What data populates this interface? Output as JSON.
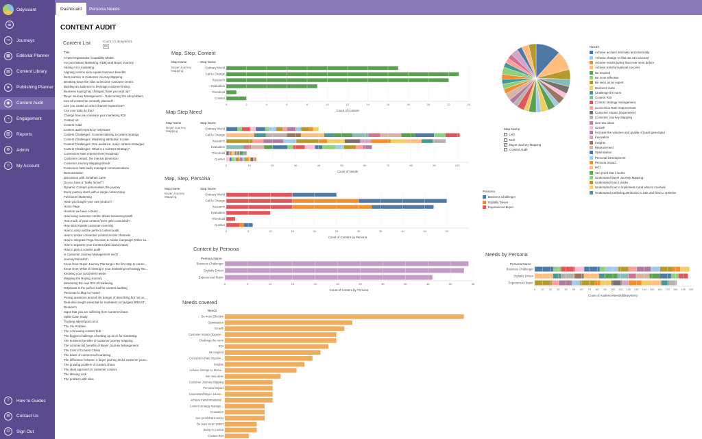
{
  "app": {
    "name": "Odyssiant"
  },
  "sidebar": {
    "items": [
      {
        "label": "Journeys",
        "icon": "route-icon",
        "glyph": "↝"
      },
      {
        "label": "Editorial Planner",
        "icon": "calendar-icon",
        "glyph": "▦"
      },
      {
        "label": "Content Library",
        "icon": "book-icon",
        "glyph": "▤"
      },
      {
        "label": "Publishing Planner",
        "icon": "send-icon",
        "glyph": "➤"
      },
      {
        "label": "Content Audit",
        "icon": "audit-icon",
        "glyph": "◉",
        "active": true
      },
      {
        "label": "Engagement",
        "icon": "engagement-icon",
        "glyph": "◔"
      },
      {
        "label": "Reports",
        "icon": "chart-icon",
        "glyph": "▥"
      },
      {
        "label": "Admin",
        "icon": "gear-icon",
        "glyph": "⚙"
      },
      {
        "label": "My Account",
        "icon": "user-icon",
        "glyph": "☺"
      }
    ],
    "footer": [
      {
        "label": "How to Guides",
        "icon": "help-icon",
        "glyph": "?"
      },
      {
        "label": "Contact Us",
        "icon": "mail-icon",
        "glyph": "✉"
      },
      {
        "label": "Sign Out",
        "icon": "signout-icon",
        "glyph": "⏻"
      }
    ]
  },
  "tabs": [
    "Dashboard",
    "Persona Needs"
  ],
  "page": {
    "title": "CONTENT AUDIT"
  },
  "content_list": {
    "title": "Content List",
    "filter_label": "Count of Libraryitem1",
    "filter_value": "89",
    "column": "Title",
    "items": [
      "A New Organisation Capability Model",
      "Account Based Marketing (ABM) and Buyer Journey",
      "Adding AI to marketing",
      "Aligning comms silos equals business benefits",
      "Best practice in Customer Journey Mapping",
      "Breaking down the silos to become customer-centric",
      "Building an audience to leverage customer timing",
      "Business buying has changed, have you kept up?",
      "Buyer Journey Management – Overcoming the silo problem",
      "Can all content be centrally planned?",
      "Can you create an omni-channel experience?",
      "Can your data do this?",
      "Change how you measure your marketing ROI",
      "Contact Us",
      "Content Audit",
      "Content audit reports by Odyssiant",
      "Content Challenges: Commercialising a content strategy",
      "Content Challenges: Marketing attribution to sale",
      "Content Challenges: One audience, many content strategies",
      "Content Challenges: What is a Content Strategy?",
      "Conversion Rate Improvement Roadmap",
      "Customer contact, the internal dimension",
      "Customer Journey Mapping Ebook",
      "Customers hate badly managed communications",
      "Demonstration",
      "Discussion with Jonathan Cann",
      "Do you have a \"leaky funnel\"?",
      "Dynamic Content personalises the journey",
      "Every journey starts with a single content step",
      "Full funnel Marketing",
      "Have you bought your own product?",
      "Home Page",
      "Houston we have contact...",
      "How being customer-centric drives business growth",
      "How much of your content never gets consumed?",
      "How silos impede customer-centricity",
      "How to carry out the perfect content audit",
      "How to create connected content across channels",
      "How to integrate Pega Decision & Adobe Campaign (Other su...",
      "How to organise your Content (and avoid chaos)",
      "How to plan a content audit",
      "Is Customer Journey Management next?",
      "Journey Research",
      "Know How: Buyer Journey Planning is the first step to conne...",
      "Know How: What is missing in your marketing technology sta...",
      "Knowing your customers needs",
      "Mapping the Buying Journey",
      "Measuring the new ROI of marketing",
      "Odyssiant is the perfect tool for content auditing",
      "Personas to Map to Funnel",
      "Posing questions around the danger of describing but not un...",
      "Real-time insight essential for marketers to navigate BREXIT...",
      "Research",
      "Signs that you are suffering from Content Chaos",
      "Splitit Case Study",
      "Trudeep advert/post on LI",
      "The 3% Problem",
      "The AI knowing content hub",
      "The biggest challenge of setting up an AI for marketing",
      "The business benefits of customer journey mapping",
      "The commercial benefits of Buyer Journey Management",
      "The Cost of Content Chaos",
      "The dawn of commercial marketing",
      "The difference between a buyer journey and a customer journ...",
      "The growing problem of content chaos",
      "The ideal approach to customer contact",
      "The Missing Link",
      "The problem with silos"
    ]
  },
  "map_step_content": {
    "title": "Map, Step, Content",
    "col_map": "Map Name",
    "col_step": "Step Name",
    "map_value": "Buyer Journey Mapping",
    "xlabel": "Count of Content"
  },
  "map_step_need": {
    "title": "Map Step Need",
    "col_map": "Map Name",
    "col_step": "Step Name",
    "map_value": "Buyer Journey Mapping",
    "xlabel": "Count of Needs"
  },
  "map_step_persona": {
    "title": "Map, Step, Persona",
    "col_map": "Map Name",
    "col_step": "Step Name",
    "map_value": "Buyer Journey Mapping",
    "xlabel": "Count of Content by Persona"
  },
  "content_by_persona": {
    "title": "Content by Persona",
    "col": "Persona Name",
    "xlabel": "Count of Content by Persona"
  },
  "needs_by_persona": {
    "title": "Needs by Persona",
    "col": "Persona Name",
    "xlabel": "Count of AudienceNeeds(libraryItem)"
  },
  "needs_covered": {
    "title": "Needs covered",
    "col": "Needs"
  },
  "map_filter": {
    "title": "Map Name",
    "options": [
      {
        "label": "(All)",
        "checked": false
      },
      {
        "label": "Null",
        "checked": false
      },
      {
        "label": "Buyer Journey Mapping",
        "checked": true
      },
      {
        "label": "Content Audit",
        "checked": false
      }
    ]
  },
  "persona_legend": {
    "title": "Persona",
    "items": [
      {
        "label": "Business Challenger",
        "color": "#4e79a7"
      },
      {
        "label": "Digitally Driven",
        "color": "#f28e2b"
      },
      {
        "label": "Experienced Buyer",
        "color": "#e15759"
      }
    ]
  },
  "needs_legend": {
    "title": "Needs",
    "items": [
      {
        "label": "Achieve acclaim internally and externally",
        "color": "#4e79a7"
      },
      {
        "label": "Achieve change so that we can succeed",
        "color": "#a0cbe8"
      },
      {
        "label": "Achieve results better than ever seen before",
        "color": "#f28e2b"
      },
      {
        "label": "Achieve transformational success",
        "color": "#ffbe7d"
      },
      {
        "label": "Be Inspired",
        "color": "#59a14f"
      },
      {
        "label": "Be more Effective",
        "color": "#8cd17d"
      },
      {
        "label": "Be seen as an expert",
        "color": "#b6992d"
      },
      {
        "label": "Business Case",
        "color": "#f1ce63"
      },
      {
        "label": "Challenge the norm",
        "color": "#499894"
      },
      {
        "label": "Content ROI",
        "color": "#86bcb6"
      },
      {
        "label": "Content strategy management",
        "color": "#e15759"
      },
      {
        "label": "Conversion Rate Improvement",
        "color": "#ff9d9a"
      },
      {
        "label": "Customer Impact (Experience)",
        "color": "#79706e"
      },
      {
        "label": "Customer Journey Mapping",
        "color": "#bab0ac"
      },
      {
        "label": "Get new ideas",
        "color": "#d37295"
      },
      {
        "label": "Growth",
        "color": "#fabfd2"
      },
      {
        "label": "Increase the volumes and quality of leads generated",
        "color": "#b07aa1"
      },
      {
        "label": "Innovation",
        "color": "#d4a6c8"
      },
      {
        "label": "Insights",
        "color": "#9d7660"
      },
      {
        "label": "Measurement",
        "color": "#d7b5a6"
      },
      {
        "label": "Optimisation",
        "color": "#4e79a7"
      },
      {
        "label": "Personal Development",
        "color": "#a0cbe8"
      },
      {
        "label": "Persona Impact",
        "color": "#f28e2b"
      },
      {
        "label": "ROI",
        "color": "#ffbe7d"
      },
      {
        "label": "See proof that it works",
        "color": "#59a14f"
      },
      {
        "label": "Understand Buyer Journey Mapping",
        "color": "#8cd17d"
      },
      {
        "label": "Understand how it works",
        "color": "#b6992d"
      },
      {
        "label": "Understand how to implement it and what is involved",
        "color": "#f1ce63"
      },
      {
        "label": "Understand marketing attribution to sale and how to optimise",
        "color": "#499894"
      }
    ]
  },
  "chart_data": [
    {
      "type": "bar",
      "title": "Map, Step, Content",
      "categories": [
        "Ordinary World",
        "Call to Change",
        "Research",
        "Evaluation",
        "Threshold",
        "Contact"
      ],
      "values": [
        17,
        23,
        22,
        9,
        1,
        2
      ],
      "xlabel": "Count of Content",
      "xlim": [
        0,
        24
      ],
      "xticks": [
        0,
        2,
        4,
        6,
        8,
        10,
        12,
        14,
        16,
        18,
        20,
        22,
        24
      ]
    },
    {
      "type": "bar",
      "stacked": true,
      "title": "Map Step Need",
      "categories": [
        "Ordinary World",
        "Call to Change",
        "Research",
        "Evaluation",
        "Threshold",
        "Contact"
      ],
      "values": [
        40,
        101,
        95,
        63,
        9,
        13
      ],
      "xlabel": "Count of Needs",
      "xlim": [
        0,
        105
      ],
      "xticks": [
        0,
        10,
        20,
        30,
        40,
        50,
        60,
        70,
        80,
        90,
        100
      ]
    },
    {
      "type": "bar",
      "stacked": true,
      "title": "Map, Step, Persona",
      "categories": [
        "Ordinary World",
        "Call to Change",
        "Research",
        "Evaluation",
        "Threshold",
        "Contact"
      ],
      "series": [
        {
          "name": "Experienced Buyer",
          "values": [
            15,
            15,
            15,
            10,
            2,
            3
          ]
        },
        {
          "name": "Digitally Driven",
          "values": [
            0,
            15,
            18,
            0,
            0,
            1
          ]
        },
        {
          "name": "Business Challenger",
          "values": [
            10,
            20,
            14,
            0,
            0,
            2
          ]
        }
      ],
      "xlabel": "Count of Content by Persona",
      "xlim": [
        0,
        55
      ],
      "xticks": [
        0,
        5,
        10,
        15,
        20,
        25,
        30,
        35,
        40,
        45,
        50
      ]
    },
    {
      "type": "bar",
      "title": "Content by Persona",
      "categories": [
        "Business Challenger",
        "Digitally Driven",
        "Experienced Buyer"
      ],
      "values": [
        54,
        53,
        46
      ],
      "xlabel": "Count of Content by Persona",
      "xlim": [
        0,
        55
      ],
      "xticks": [
        0,
        5,
        10,
        15,
        20,
        25,
        30,
        35,
        40,
        45,
        50,
        55
      ]
    },
    {
      "type": "bar",
      "stacked": true,
      "title": "Needs by Persona",
      "categories": [
        "Business Challenger",
        "Digitally Driven",
        "Experienced Buyer"
      ],
      "values": [
        198,
        196,
        182
      ],
      "xlabel": "Count of AudienceNeeds(libraryItem)",
      "xlim": [
        0,
        200
      ],
      "xticks": [
        0,
        10,
        20,
        30,
        40,
        50,
        60,
        70,
        80,
        90,
        100,
        110,
        120,
        130,
        140,
        150,
        160,
        170,
        180,
        190,
        200
      ]
    },
    {
      "type": "bar",
      "title": "Needs covered",
      "categories": [
        "Be more Effective",
        "Optimisation",
        "Growth",
        "Customer Impact (Experie...",
        "Challenge the norm",
        "ROI",
        "Be Inspired",
        "Conversion Rate Improve...",
        "Insights",
        "Achieve change so that w...",
        "Get new ideas",
        "Customer Journey Mapping",
        "Personal Impact",
        "Understand Buyer Journe...",
        "Achieve transformational...",
        "Content strategy manage...",
        "Innovation",
        "See proof that it works",
        "Be seen as an expert",
        "Being in Control",
        "Content ROI"
      ],
      "values": [
        30,
        16,
        15,
        14,
        14,
        13,
        12,
        11,
        10,
        9,
        7,
        6,
        6,
        6,
        6,
        5,
        5,
        5,
        4,
        4,
        3
      ]
    },
    {
      "type": "pie",
      "values": [
        10,
        8,
        4,
        3,
        3,
        2,
        3,
        2,
        3,
        3,
        2,
        3,
        2,
        3,
        2,
        2,
        3,
        2,
        2,
        2,
        2,
        3,
        2,
        2,
        2,
        3,
        2,
        3,
        3
      ]
    }
  ]
}
